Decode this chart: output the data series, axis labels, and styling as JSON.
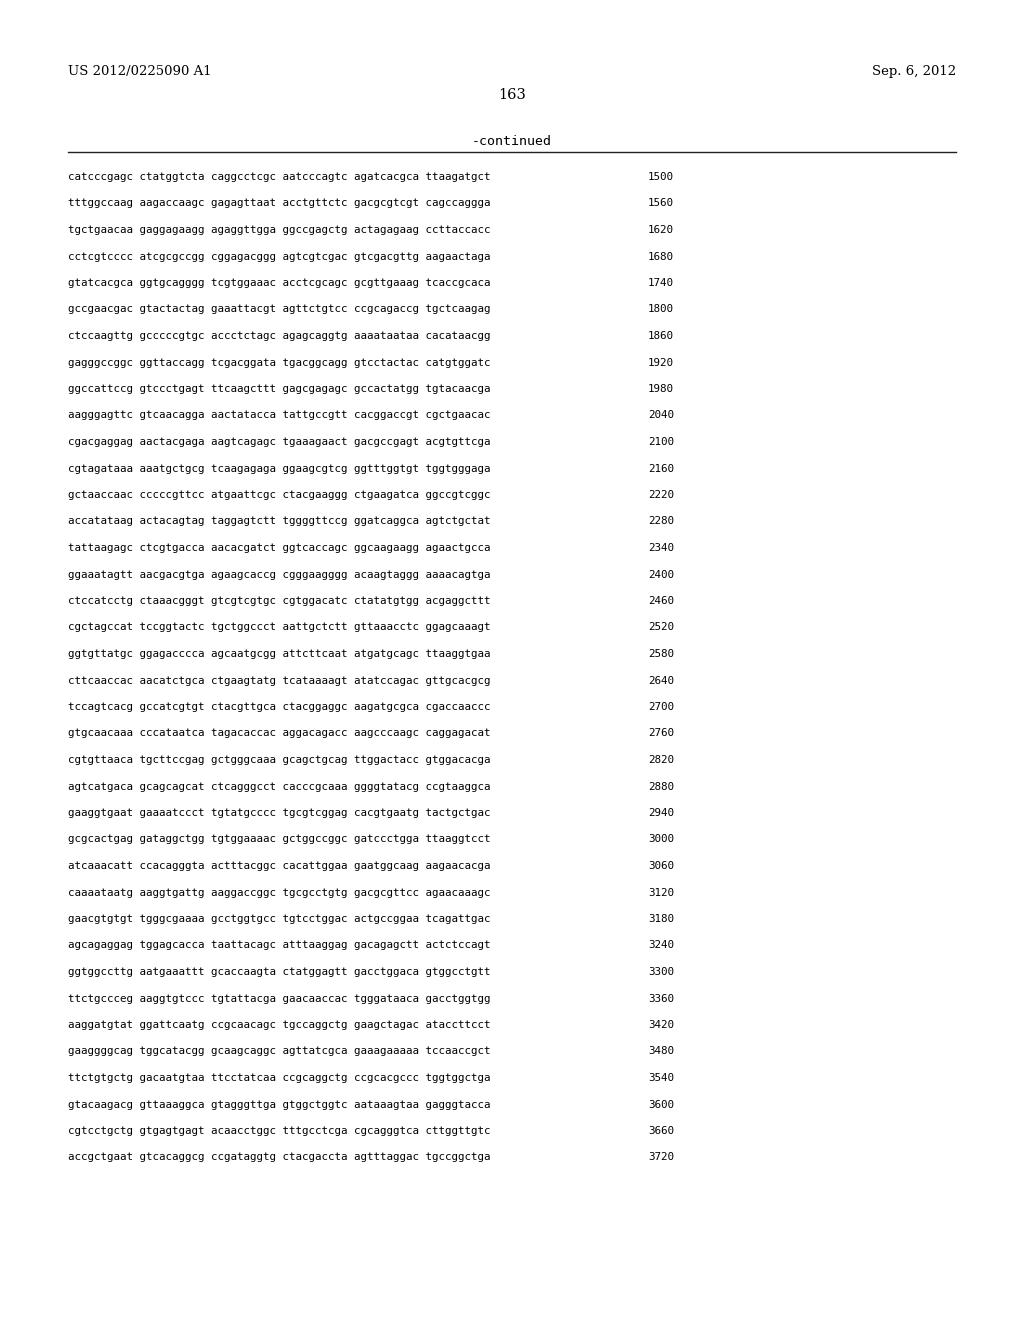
{
  "header_left": "US 2012/0225090 A1",
  "header_right": "Sep. 6, 2012",
  "page_number": "163",
  "continued_label": "-continued",
  "background_color": "#ffffff",
  "text_color": "#000000",
  "font_size_header": 9.5,
  "font_size_page": 10.5,
  "font_size_continued": 9.5,
  "font_size_sequence": 7.8,
  "sequence_lines": [
    [
      "catcccgagc ctatggtcta caggcctcgc aatcccagtc agatcacgca ttaagatgct",
      "1500"
    ],
    [
      "tttggccaag aagaccaagc gagagttaat acctgttctc gacgcgtcgt cagccaggga",
      "1560"
    ],
    [
      "tgctgaacaa gaggagaagg agaggttgga ggccgagctg actagagaag ccttaccacc",
      "1620"
    ],
    [
      "cctcgtcccc atcgcgccgg cggagacggg agtcgtcgac gtcgacgttg aagaactaga",
      "1680"
    ],
    [
      "gtatcacgca ggtgcagggg tcgtggaaac acctcgcagc gcgttgaaag tcaccgcaca",
      "1740"
    ],
    [
      "gccgaacgac gtactactag gaaattacgt agttctgtcc ccgcagaccg tgctcaagag",
      "1800"
    ],
    [
      "ctccaagttg gcccccgtgc accctctagc agagcaggtg aaaataataa cacataacgg",
      "1860"
    ],
    [
      "gagggccggc ggttaccagg tcgacggata tgacggcagg gtcctactac catgtggatc",
      "1920"
    ],
    [
      "ggccattccg gtccctgagt ttcaagcttt gagcgagagc gccactatgg tgtacaacga",
      "1980"
    ],
    [
      "aagggagttc gtcaacagga aactatacca tattgccgtt cacggaccgt cgctgaacac",
      "2040"
    ],
    [
      "cgacgaggag aactacgaga aagtcagagc tgaaagaact gacgccgagt acgtgttcga",
      "2100"
    ],
    [
      "cgtagataaa aaatgctgcg tcaagagaga ggaagcgtcg ggtttggtgt tggtgggaga",
      "2160"
    ],
    [
      "gctaaccaac cccccgttcc atgaattcgc ctacgaaggg ctgaagatca ggccgtcggc",
      "2220"
    ],
    [
      "accatataag actacagtag taggagtctt tggggttccg ggatcaggca agtctgctat",
      "2280"
    ],
    [
      "tattaagagc ctcgtgacca aacacgatct ggtcaccagc ggcaagaagg agaactgcca",
      "2340"
    ],
    [
      "ggaaatagtt aacgacgtga agaagcaccg cgggaagggg acaagtaggg aaaacagtga",
      "2400"
    ],
    [
      "ctccatcctg ctaaacgggt gtcgtcgtgc cgtggacatc ctatatgtgg acgaggcttt",
      "2460"
    ],
    [
      "cgctagccat tccggtactc tgctggccct aattgctctt gttaaacctc ggagcaaagt",
      "2520"
    ],
    [
      "ggtgttatgc ggagacccca agcaatgcgg attcttcaat atgatgcagc ttaaggtgaa",
      "2580"
    ],
    [
      "cttcaaccac aacatctgca ctgaagtatg tcataaaagt atatccagac gttgcacgcg",
      "2640"
    ],
    [
      "tccagtcacg gccatcgtgt ctacgttgca ctacggaggc aagatgcgca cgaccaaccc",
      "2700"
    ],
    [
      "gtgcaacaaa cccataatca tagacaccac aggacagacc aagcccaagc caggagacat",
      "2760"
    ],
    [
      "cgtgttaaca tgcttccgag gctgggcaaa gcagctgcag ttggactacc gtggacacga",
      "2820"
    ],
    [
      "agtcatgaca gcagcagcat ctcagggcct cacccgcaaa ggggtatacg ccgtaaggca",
      "2880"
    ],
    [
      "gaaggtgaat gaaaatccct tgtatgcccc tgcgtcggag cacgtgaatg tactgctgac",
      "2940"
    ],
    [
      "gcgcactgag gataggctgg tgtggaaaac gctggccggc gatccctgga ttaaggtcct",
      "3000"
    ],
    [
      "atcaaacatt ccacagggta actttacggc cacattggaa gaatggcaag aagaacacga",
      "3060"
    ],
    [
      "caaaataatg aaggtgattg aaggaccggc tgcgcctgtg gacgcgttcc agaacaaagc",
      "3120"
    ],
    [
      "gaacgtgtgt tgggcgaaaa gcctggtgcc tgtcctggac actgccggaa tcagattgac",
      "3180"
    ],
    [
      "agcagaggag tggagcacca taattacagc atttaaggag gacagagctt actctccagt",
      "3240"
    ],
    [
      "ggtggccttg aatgaaattt gcaccaagta ctatggagtt gacctggaca gtggcctgtt",
      "3300"
    ],
    [
      "ttctgccceg aaggtgtccc tgtattacga gaacaaccac tgggataaca gacctggtgg",
      "3360"
    ],
    [
      "aaggatgtat ggattcaatg ccgcaacagc tgccaggctg gaagctagac ataccttcct",
      "3420"
    ],
    [
      "gaaggggcag tggcatacgg gcaagcaggc agttatcgca gaaagaaaaa tccaaccgct",
      "3480"
    ],
    [
      "ttctgtgctg gacaatgtaa ttcctatcaa ccgcaggctg ccgcacgccc tggtggctga",
      "3540"
    ],
    [
      "gtacaagacg gttaaaggca gtagggttga gtggctggtc aataaagtaa gagggtacca",
      "3600"
    ],
    [
      "cgtcctgctg gtgagtgagt acaacctggc tttgcctcga cgcagggtca cttggttgtc",
      "3660"
    ],
    [
      "accgctgaat gtcacaggcg ccgataggtg ctacgaccta agtttaggac tgccggctga",
      "3720"
    ]
  ]
}
